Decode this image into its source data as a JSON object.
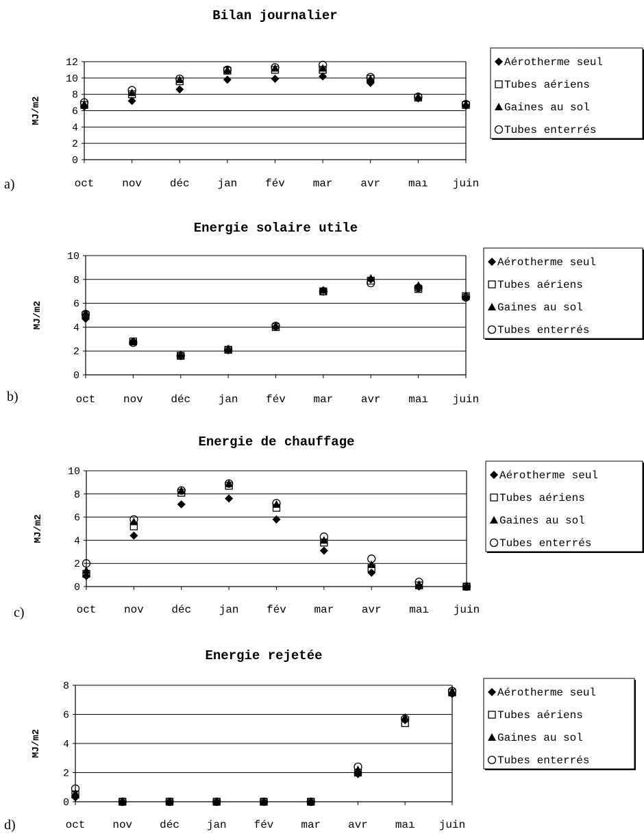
{
  "chart_data": [
    {
      "type": "scatter",
      "panel_label": "a)",
      "title": "Bilan journalier",
      "xlabel": "",
      "ylabel": "MJ/m2",
      "ylim": [
        0,
        12
      ],
      "yticks": [
        0,
        2,
        4,
        6,
        8,
        10,
        12
      ],
      "grid": true,
      "legend": "right",
      "categories": [
        "oct",
        "nov",
        "déc",
        "jan",
        "fév",
        "mar",
        "avr",
        "maı",
        "juin"
      ],
      "series": [
        {
          "name": "Aérotherme seul",
          "marker": "diamond",
          "values": [
            6.5,
            7.2,
            8.6,
            9.8,
            9.9,
            10.2,
            9.4,
            7.5,
            6.6
          ]
        },
        {
          "name": "Tubes aériens",
          "marker": "square-open",
          "values": [
            6.7,
            8.0,
            9.6,
            10.9,
            11.0,
            11.0,
            9.9,
            7.6,
            6.7
          ]
        },
        {
          "name": "Gaines au sol",
          "marker": "triangle",
          "values": [
            6.8,
            8.2,
            9.8,
            11.0,
            11.2,
            11.2,
            9.9,
            7.7,
            6.8
          ]
        },
        {
          "name": "Tubes enterrés",
          "marker": "circle-open",
          "values": [
            7.0,
            8.5,
            9.9,
            11.0,
            11.3,
            11.6,
            10.1,
            7.7,
            6.8
          ]
        }
      ]
    },
    {
      "type": "scatter",
      "panel_label": "b)",
      "title": "Energie solaire utile",
      "xlabel": "",
      "ylabel": "MJ/m2",
      "ylim": [
        0,
        10
      ],
      "yticks": [
        0,
        2,
        4,
        6,
        8,
        10
      ],
      "grid": true,
      "legend": "right",
      "categories": [
        "oct",
        "nov",
        "déc",
        "jan",
        "fév",
        "mar",
        "avr",
        "maı",
        "juin"
      ],
      "series": [
        {
          "name": "Aérotherme seul",
          "marker": "diamond",
          "values": [
            4.7,
            2.8,
            1.6,
            2.1,
            4.0,
            7.1,
            8.0,
            7.3,
            6.5
          ]
        },
        {
          "name": "Tubes aériens",
          "marker": "square-open",
          "values": [
            5.0,
            2.8,
            1.6,
            2.1,
            4.0,
            7.0,
            7.9,
            7.2,
            6.6
          ]
        },
        {
          "name": "Gaines au sol",
          "marker": "triangle",
          "values": [
            5.2,
            2.8,
            1.7,
            2.2,
            4.1,
            7.1,
            8.1,
            7.5,
            6.6
          ]
        },
        {
          "name": "Tubes enterrés",
          "marker": "circle-open",
          "values": [
            5.1,
            2.7,
            1.6,
            2.1,
            4.1,
            7.0,
            7.7,
            7.3,
            6.5
          ]
        }
      ]
    },
    {
      "type": "scatter",
      "panel_label": "c)",
      "title": "Energie de chauffage",
      "xlabel": "",
      "ylabel": "MJ/m2",
      "ylim": [
        0,
        10
      ],
      "yticks": [
        0,
        2,
        4,
        6,
        8,
        10
      ],
      "grid": true,
      "legend": "right",
      "categories": [
        "oct",
        "nov",
        "déc",
        "jan",
        "fév",
        "mar",
        "avr",
        "maı",
        "juin"
      ],
      "series": [
        {
          "name": "Aérotherme seul",
          "marker": "diamond",
          "values": [
            0.9,
            4.4,
            7.1,
            7.6,
            5.8,
            3.1,
            1.2,
            0.0,
            0.0
          ]
        },
        {
          "name": "Tubes aériens",
          "marker": "square-open",
          "values": [
            1.1,
            5.2,
            8.1,
            8.7,
            6.8,
            3.8,
            1.6,
            0.1,
            0.0
          ]
        },
        {
          "name": "Gaines au sol",
          "marker": "triangle",
          "values": [
            1.4,
            5.6,
            8.3,
            8.9,
            7.1,
            4.0,
            1.9,
            0.2,
            0.0
          ]
        },
        {
          "name": "Tubes enterrés",
          "marker": "circle-open",
          "values": [
            2.0,
            5.8,
            8.3,
            8.9,
            7.2,
            4.3,
            2.4,
            0.4,
            0.0
          ]
        }
      ]
    },
    {
      "type": "scatter",
      "panel_label": "d)",
      "title": "Energie rejetée",
      "xlabel": "",
      "ylabel": "MJ/m2",
      "ylim": [
        0,
        8
      ],
      "yticks": [
        0,
        2,
        4,
        6,
        8
      ],
      "grid": true,
      "legend": "right",
      "categories": [
        "oct",
        "nov",
        "déc",
        "jan",
        "fév",
        "mar",
        "avr",
        "maı",
        "juin"
      ],
      "series": [
        {
          "name": "Aérotherme seul",
          "marker": "diamond",
          "values": [
            0.3,
            0.0,
            0.0,
            0.0,
            0.0,
            0.0,
            1.9,
            5.6,
            7.4
          ]
        },
        {
          "name": "Tubes aériens",
          "marker": "square-open",
          "values": [
            0.5,
            0.0,
            0.0,
            0.0,
            0.0,
            0.0,
            2.0,
            5.4,
            7.5
          ]
        },
        {
          "name": "Gaines au sol",
          "marker": "triangle",
          "values": [
            0.6,
            0.0,
            0.0,
            0.0,
            0.0,
            0.0,
            2.2,
            5.8,
            7.6
          ]
        },
        {
          "name": "Tubes enterrés",
          "marker": "circle-open",
          "values": [
            0.9,
            0.0,
            0.0,
            0.0,
            0.0,
            0.0,
            2.4,
            5.7,
            7.6
          ]
        }
      ]
    }
  ]
}
